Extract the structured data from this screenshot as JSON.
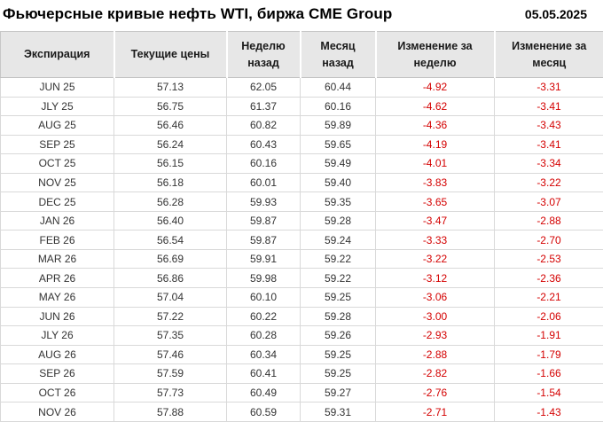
{
  "header": {
    "title": "Фьючерсные кривые нефть WTI, биржа CME Group",
    "date": "05.05.2025"
  },
  "table": {
    "columns": [
      "Экспирация",
      "Текущие цены",
      "Неделю назад",
      "Месяц назад",
      "Изменение за неделю",
      "Изменение за месяц"
    ]
  },
  "chart_data": {
    "type": "table",
    "title": "Фьючерсные кривые нефть WTI, биржа CME Group",
    "date": "05.05.2025",
    "categories": [
      "JUN 25",
      "JLY 25",
      "AUG 25",
      "SEP 25",
      "OCT 25",
      "NOV 25",
      "DEC 25",
      "JAN 26",
      "FEB 26",
      "MAR 26",
      "APR 26",
      "MAY 26",
      "JUN 26",
      "JLY 26",
      "AUG 26",
      "SEP 26",
      "OCT 26",
      "NOV 26"
    ],
    "series": [
      {
        "name": "Текущие цены",
        "values": [
          57.13,
          56.75,
          56.46,
          56.24,
          56.15,
          56.18,
          56.28,
          56.4,
          56.54,
          56.69,
          56.86,
          57.04,
          57.22,
          57.35,
          57.46,
          57.59,
          57.73,
          57.88
        ]
      },
      {
        "name": "Неделю назад",
        "values": [
          62.05,
          61.37,
          60.82,
          60.43,
          60.16,
          60.01,
          59.93,
          59.87,
          59.87,
          59.91,
          59.98,
          60.1,
          60.22,
          60.28,
          60.34,
          60.41,
          60.49,
          60.59
        ]
      },
      {
        "name": "Месяц назад",
        "values": [
          60.44,
          60.16,
          59.89,
          59.65,
          59.49,
          59.4,
          59.35,
          59.28,
          59.24,
          59.22,
          59.22,
          59.25,
          59.28,
          59.26,
          59.25,
          59.25,
          59.27,
          59.31
        ]
      },
      {
        "name": "Изменение за неделю",
        "values": [
          -4.92,
          -4.62,
          -4.36,
          -4.19,
          -4.01,
          -3.83,
          -3.65,
          -3.47,
          -3.33,
          -3.22,
          -3.12,
          -3.06,
          -3.0,
          -2.93,
          -2.88,
          -2.82,
          -2.76,
          -2.71
        ]
      },
      {
        "name": "Изменение за месяц",
        "values": [
          -3.31,
          -3.41,
          -3.43,
          -3.41,
          -3.34,
          -3.22,
          -3.07,
          -2.88,
          -2.7,
          -2.53,
          -2.36,
          -2.21,
          -2.06,
          -1.91,
          -1.79,
          -1.66,
          -1.54,
          -1.43
        ]
      }
    ]
  },
  "colors": {
    "negative_value": "#d40000",
    "header_bg": "#e7e7e7",
    "border": "#d9d9d9",
    "text": "#333333"
  }
}
